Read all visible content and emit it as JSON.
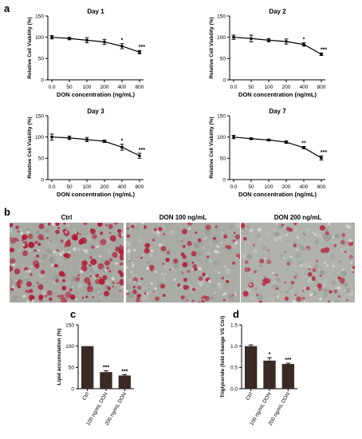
{
  "panel_letters": {
    "a": "a",
    "b": "b",
    "c": "c",
    "d": "d"
  },
  "chart_data": [
    {
      "type": "line",
      "panel": "a",
      "title": "Day 1",
      "xlabel": "DON concentration (ng/mL)",
      "ylabel": "Relative Cell Viability (%)",
      "categories": [
        "0.0",
        "50",
        "100",
        "200",
        "400",
        "800"
      ],
      "values": [
        100,
        97,
        93,
        89,
        79,
        65
      ],
      "errors": [
        4,
        3,
        6,
        6,
        6,
        4
      ],
      "significance": [
        "",
        "",
        "",
        "",
        "*",
        "***"
      ],
      "ylim": [
        0,
        150
      ],
      "yticks": [
        0,
        50,
        100,
        150
      ],
      "grid": false
    },
    {
      "type": "line",
      "panel": "a",
      "title": "Day 2",
      "xlabel": "DON concentration (ng/mL)",
      "ylabel": "Relative Cell Viability (%)",
      "categories": [
        "0.0",
        "50",
        "100",
        "200",
        "400",
        "800"
      ],
      "values": [
        100,
        97,
        93,
        90,
        83,
        60
      ],
      "errors": [
        5,
        8,
        4,
        6,
        4,
        3
      ],
      "significance": [
        "",
        "",
        "",
        "",
        "*",
        "***"
      ],
      "ylim": [
        0,
        150
      ],
      "yticks": [
        0,
        50,
        100,
        150
      ],
      "grid": false
    },
    {
      "type": "line",
      "panel": "a",
      "title": "Day 3",
      "xlabel": "DON concentration (ng/mL)",
      "ylabel": "Relative Cell Viability (%)",
      "categories": [
        "0.0",
        "50",
        "100",
        "200",
        "400",
        "800"
      ],
      "values": [
        100,
        98,
        94,
        90,
        76,
        56
      ],
      "errors": [
        7,
        4,
        5,
        3,
        7,
        6
      ],
      "significance": [
        "",
        "",
        "",
        "",
        "*",
        "***"
      ],
      "ylim": [
        0,
        150
      ],
      "yticks": [
        0,
        50,
        100,
        150
      ],
      "grid": false
    },
    {
      "type": "line",
      "panel": "a",
      "title": "Day 7",
      "xlabel": "DON concentration (ng/mL)",
      "ylabel": "Relative Cell Viability (%)",
      "categories": [
        "0.0",
        "50",
        "100",
        "200",
        "400",
        "800"
      ],
      "values": [
        100,
        96,
        93,
        88,
        75,
        51
      ],
      "errors": [
        4,
        2,
        2,
        3,
        3,
        5
      ],
      "significance": [
        "",
        "",
        "",
        "",
        "**",
        "***"
      ],
      "ylim": [
        0,
        150
      ],
      "yticks": [
        0,
        50,
        100,
        150
      ],
      "grid": false
    },
    {
      "type": "bar",
      "panel": "c",
      "title": "",
      "xlabel": "",
      "ylabel": "Lipid accumulation (%)",
      "categories": [
        "Ctrl",
        "100 ng/mL DON",
        "200 ng/mL DON"
      ],
      "values": [
        100,
        39,
        31
      ],
      "errors": [
        0,
        3,
        2
      ],
      "significance": [
        "",
        "***",
        "***"
      ],
      "ylim": [
        0,
        150
      ],
      "yticks": [
        0,
        50,
        100,
        150
      ],
      "bar_color": "#3a2a26",
      "grid": false
    },
    {
      "type": "bar",
      "panel": "d",
      "title": "",
      "xlabel": "",
      "ylabel": "Triglyceride (fold change VS Ctrl)",
      "categories": [
        "Ctrl",
        "100 ng/mL DON",
        "200 ng/mL DON"
      ],
      "values": [
        1.0,
        0.66,
        0.58
      ],
      "errors": [
        0.03,
        0.07,
        0.02
      ],
      "significance": [
        "",
        "*",
        "***"
      ],
      "ylim": [
        0,
        1.5
      ],
      "yticks": [
        "0.0",
        "0.5",
        "1.0",
        "1.5"
      ],
      "bar_color": "#3a2a26",
      "grid": false
    }
  ],
  "micrographs": [
    {
      "label": "Ctrl",
      "base_color": "#a7a9a2",
      "stain_color": "#b01836"
    },
    {
      "label": "DON 100 ng/mL",
      "base_color": "#a9aba5",
      "stain_color": "#b3223e"
    },
    {
      "label": "DON 200 ng/mL",
      "base_color": "#b0b2ac",
      "stain_color": "#b6304a"
    }
  ]
}
